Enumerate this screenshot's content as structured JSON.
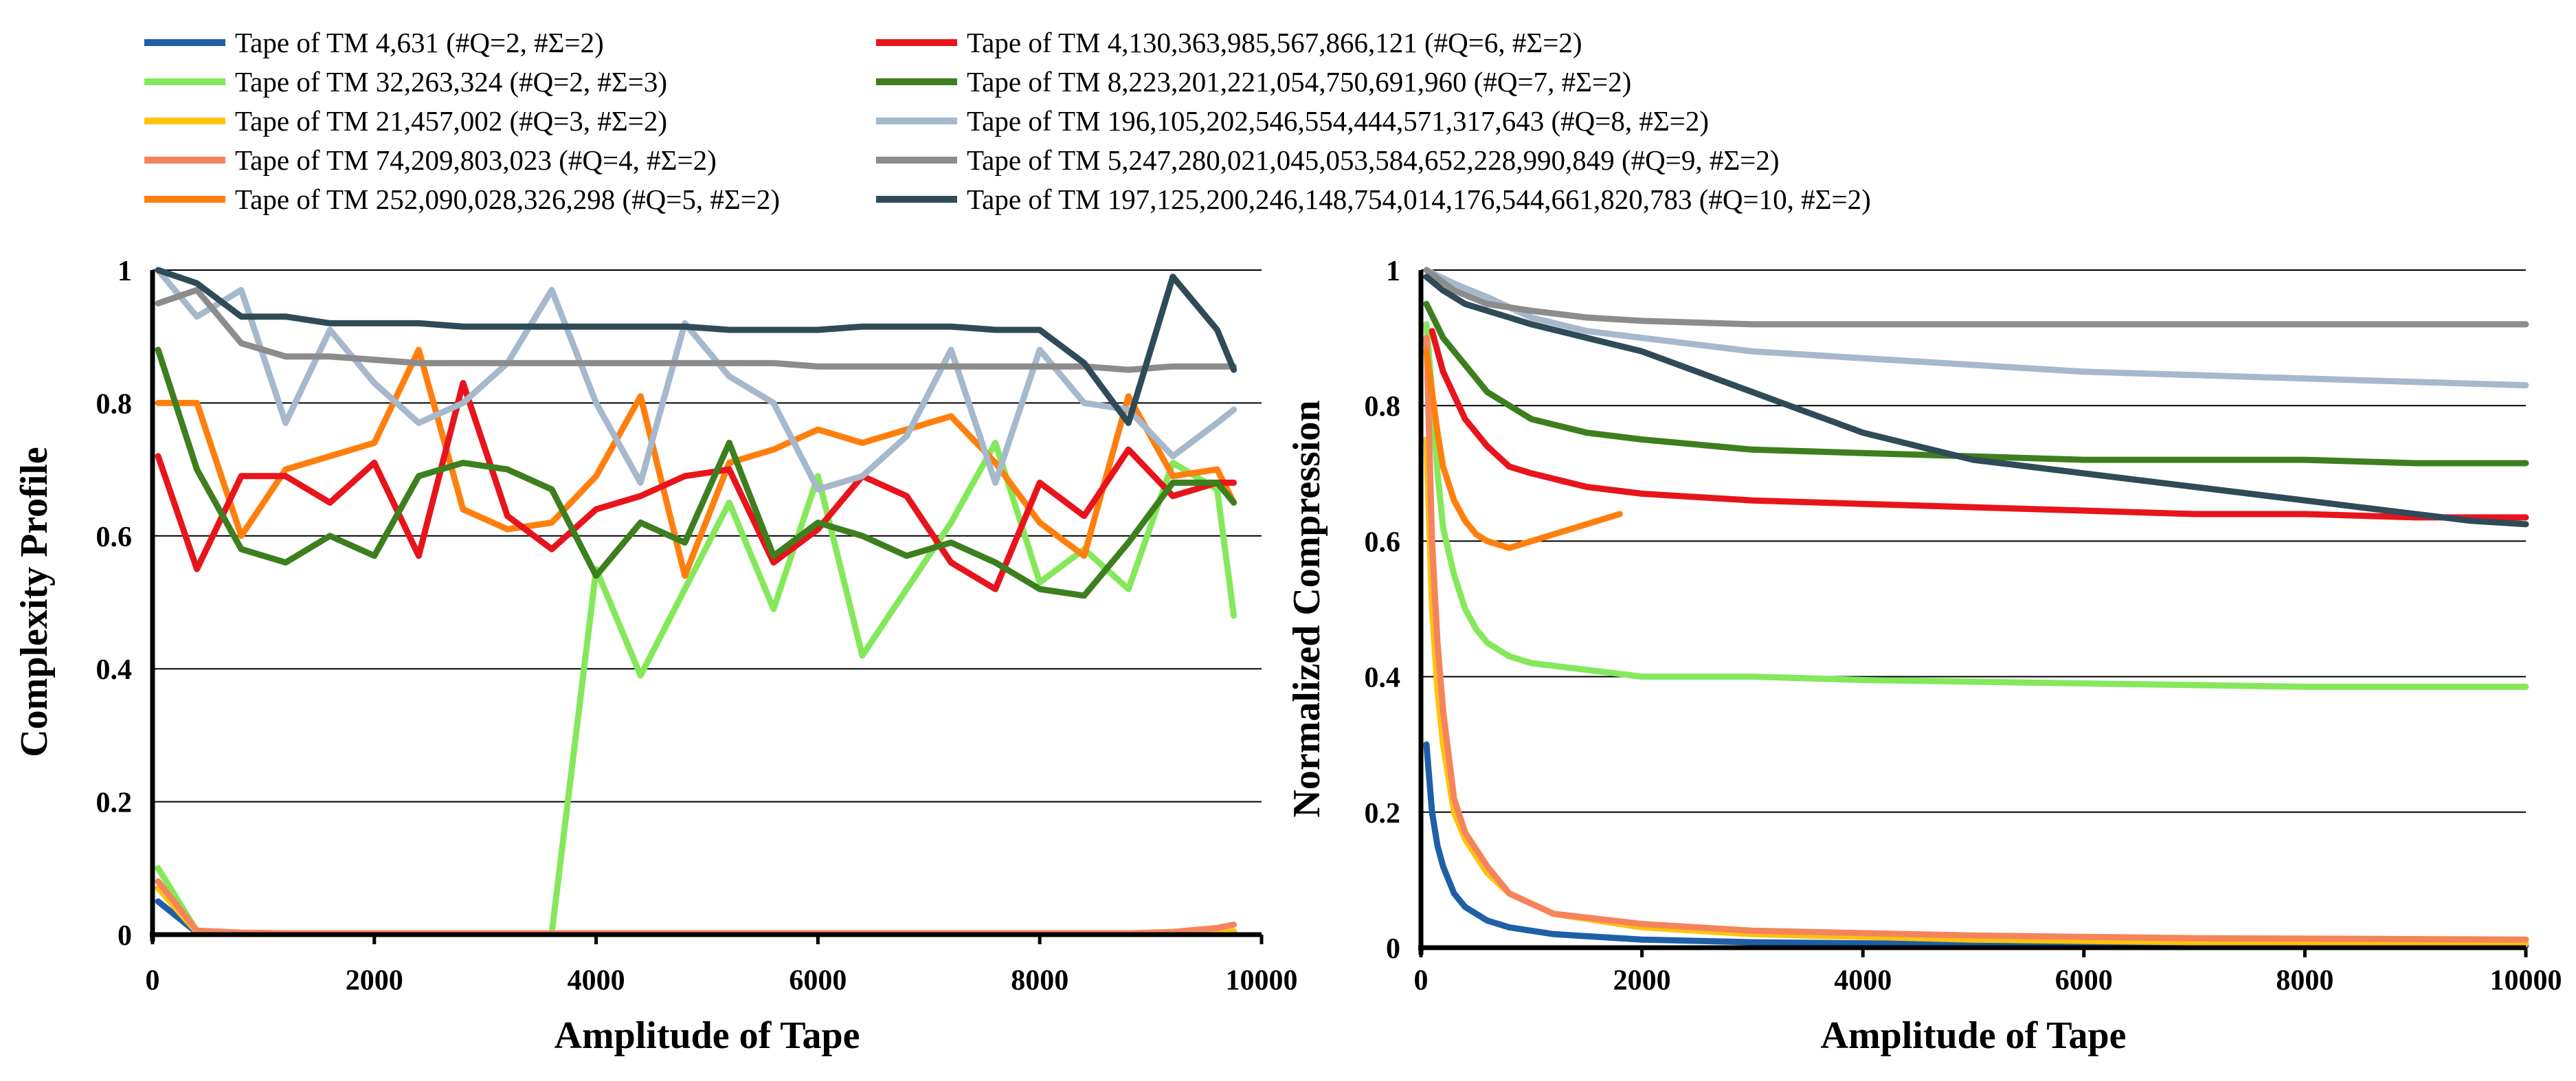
{
  "legend": [
    {
      "label": "Tape of TM 4,631 (#Q=2, #Σ=2)",
      "color": "#1f5fa8"
    },
    {
      "label": "Tape of TM 32,263,324 (#Q=2, #Σ=3)",
      "color": "#84e85a"
    },
    {
      "label": "Tape of TM 21,457,002 (#Q=3, #Σ=2)",
      "color": "#ffc20e"
    },
    {
      "label": "Tape of TM 74,209,803,023 (#Q=4, #Σ=2)",
      "color": "#f5845c"
    },
    {
      "label": "Tape of TM 252,090,028,326,298 (#Q=5, #Σ=2)",
      "color": "#ff7f0e"
    },
    {
      "label": "Tape of TM 4,130,363,985,567,866,121 (#Q=6, #Σ=2)",
      "color": "#e8141c"
    },
    {
      "label": "Tape of TM 8,223,201,221,054,750,691,960 (#Q=7, #Σ=2)",
      "color": "#3d7f1f"
    },
    {
      "label": "Tape of TM 196,105,202,546,554,444,571,317,643 (#Q=8, #Σ=2)",
      "color": "#a6b8cc"
    },
    {
      "label": "Tape of TM 5,247,280,021,045,053,584,652,228,990,849 (#Q=9, #Σ=2)",
      "color": "#8c8c8c"
    },
    {
      "label": "Tape of TM 197,125,200,246,148,754,014,176,544,661,820,783 (#Q=10, #Σ=2)",
      "color": "#2f4b57"
    }
  ],
  "chart_data": [
    {
      "type": "line",
      "xlabel": "Amplitude of Tape",
      "ylabel": "Complexity Profile",
      "xlim": [
        0,
        10000
      ],
      "ylim": [
        0,
        1
      ],
      "xticks": [
        "0",
        "2000",
        "4000",
        "6000",
        "8000",
        "10000"
      ],
      "yticks": [
        "0",
        "0.2",
        "0.4",
        "0.6",
        "0.8",
        "1"
      ],
      "xtick_values": [
        0,
        2000,
        4000,
        6000,
        8000,
        10000
      ],
      "ytick_values": [
        0,
        0.2,
        0.4,
        0.6,
        0.8,
        1
      ],
      "grid": "horizontal",
      "x": [
        50,
        400,
        800,
        1200,
        1600,
        2000,
        2400,
        2800,
        3200,
        3600,
        4000,
        4400,
        4800,
        5200,
        5600,
        6000,
        6400,
        6800,
        7200,
        7600,
        8000,
        8400,
        8800,
        9200,
        9600,
        9750
      ],
      "series": [
        {
          "name": "Tape of TM 4,631 (#Q=2, #Σ=2)",
          "values": [
            0.05,
            0.003,
            0.002,
            0.002,
            0.002,
            0.002,
            0.002,
            0.002,
            0.002,
            0.002,
            0.002,
            0.002,
            0.002,
            0.002,
            0.002,
            0.002,
            0.002,
            0.002,
            0.002,
            0.002,
            0.002,
            0.002,
            0.002,
            0.002,
            0.002,
            0.002
          ]
        },
        {
          "name": "Tape of TM 32,263,324 (#Q=2, #Σ=3)",
          "values": [
            0.1,
            0.005,
            0.002,
            0.002,
            0.002,
            0.002,
            0.002,
            0.002,
            0.002,
            0.002,
            0.55,
            0.39,
            0.52,
            0.65,
            0.49,
            0.69,
            0.42,
            0.52,
            0.62,
            0.74,
            0.53,
            0.58,
            0.52,
            0.71,
            0.67,
            0.48
          ]
        },
        {
          "name": "Tape of TM 21,457,002 (#Q=3, #Σ=2)",
          "values": [
            0.07,
            0.004,
            0.002,
            0.002,
            0.002,
            0.002,
            0.002,
            0.002,
            0.002,
            0.002,
            0.002,
            0.002,
            0.002,
            0.002,
            0.002,
            0.002,
            0.002,
            0.002,
            0.002,
            0.002,
            0.002,
            0.002,
            0.002,
            0.002,
            0.002,
            0.005
          ]
        },
        {
          "name": "Tape of TM 74,209,803,023 (#Q=4, #Σ=2)",
          "values": [
            0.08,
            0.006,
            0.003,
            0.002,
            0.002,
            0.002,
            0.002,
            0.002,
            0.002,
            0.002,
            0.002,
            0.002,
            0.002,
            0.002,
            0.002,
            0.002,
            0.002,
            0.002,
            0.002,
            0.002,
            0.002,
            0.002,
            0.002,
            0.004,
            0.01,
            0.015
          ]
        },
        {
          "name": "Tape of TM 252,090,028,326,298 (#Q=5, #Σ=2)",
          "values": [
            0.8,
            0.8,
            0.6,
            0.7,
            0.72,
            0.74,
            0.88,
            0.64,
            0.61,
            0.62,
            0.69,
            0.81,
            0.54,
            0.71,
            0.73,
            0.76,
            0.74,
            0.76,
            0.78,
            0.71,
            0.62,
            0.57,
            0.81,
            0.69,
            0.7,
            0.65
          ]
        },
        {
          "name": "Tape of TM 4,130,363,985,567,866,121 (#Q=6, #Σ=2)",
          "values": [
            0.72,
            0.55,
            0.69,
            0.69,
            0.65,
            0.71,
            0.57,
            0.83,
            0.63,
            0.58,
            0.64,
            0.66,
            0.69,
            0.7,
            0.56,
            0.61,
            0.69,
            0.66,
            0.56,
            0.52,
            0.68,
            0.63,
            0.73,
            0.66,
            0.68,
            0.68
          ]
        },
        {
          "name": "Tape of TM 8,223,201,221,054,750,691,960 (#Q=7, #Σ=2)",
          "values": [
            0.88,
            0.7,
            0.58,
            0.56,
            0.6,
            0.57,
            0.69,
            0.71,
            0.7,
            0.67,
            0.54,
            0.62,
            0.59,
            0.74,
            0.57,
            0.62,
            0.6,
            0.57,
            0.59,
            0.56,
            0.52,
            0.51,
            0.59,
            0.68,
            0.68,
            0.65
          ]
        },
        {
          "name": "Tape of TM 196,105,202,546,554,444,571,317,643 (#Q=8, #Σ=2)",
          "values": [
            1.0,
            0.93,
            0.97,
            0.77,
            0.91,
            0.83,
            0.77,
            0.8,
            0.86,
            0.97,
            0.8,
            0.68,
            0.92,
            0.84,
            0.8,
            0.67,
            0.69,
            0.75,
            0.88,
            0.68,
            0.88,
            0.8,
            0.79,
            0.72,
            0.77,
            0.79
          ]
        },
        {
          "name": "Tape of TM 5,247,280,021,045,053,584,652,228,990,849 (#Q=9, #Σ=2)",
          "values": [
            0.95,
            0.97,
            0.89,
            0.87,
            0.87,
            0.865,
            0.86,
            0.86,
            0.86,
            0.86,
            0.86,
            0.86,
            0.86,
            0.86,
            0.86,
            0.855,
            0.855,
            0.855,
            0.855,
            0.855,
            0.855,
            0.855,
            0.85,
            0.855,
            0.855,
            0.855
          ]
        },
        {
          "name": "Tape of TM 197,125,200,246,148,754,014,176,544,661,820,783 (#Q=10, #Σ=2)",
          "values": [
            1.0,
            0.98,
            0.93,
            0.93,
            0.92,
            0.92,
            0.92,
            0.915,
            0.915,
            0.915,
            0.915,
            0.915,
            0.915,
            0.91,
            0.91,
            0.91,
            0.915,
            0.915,
            0.915,
            0.91,
            0.91,
            0.86,
            0.77,
            0.99,
            0.91,
            0.85
          ]
        }
      ]
    },
    {
      "type": "line",
      "xlabel": "Amplitude of Tape",
      "ylabel": "Normalized Compression",
      "xlim": [
        0,
        10000
      ],
      "ylim": [
        0,
        1
      ],
      "xticks": [
        "0",
        "2000",
        "4000",
        "6000",
        "8000",
        "10000"
      ],
      "yticks": [
        "0",
        "0.2",
        "0.4",
        "0.6",
        "0.8",
        "1"
      ],
      "xtick_values": [
        0,
        2000,
        4000,
        6000,
        8000,
        10000
      ],
      "ytick_values": [
        0,
        0.2,
        0.4,
        0.6,
        0.8,
        1
      ],
      "grid": "horizontal",
      "series": [
        {
          "name": "Tape of TM 4,631 (#Q=2, #Σ=2)",
          "x": [
            50,
            100,
            150,
            200,
            300,
            400,
            600,
            800,
            1200,
            2000,
            3000,
            5000,
            7000,
            10000
          ],
          "values": [
            0.3,
            0.2,
            0.15,
            0.12,
            0.08,
            0.06,
            0.04,
            0.03,
            0.02,
            0.012,
            0.008,
            0.005,
            0.004,
            0.003
          ]
        },
        {
          "name": "Tape of TM 32,263,324 (#Q=2, #Σ=3)",
          "x": [
            50,
            100,
            150,
            200,
            300,
            400,
            500,
            600,
            800,
            1000,
            1500,
            2000,
            3000,
            4000,
            6000,
            8000,
            10000
          ],
          "values": [
            0.92,
            0.82,
            0.7,
            0.62,
            0.55,
            0.5,
            0.47,
            0.45,
            0.43,
            0.42,
            0.41,
            0.4,
            0.4,
            0.395,
            0.39,
            0.385,
            0.385
          ]
        },
        {
          "name": "Tape of TM 21,457,002 (#Q=3, #Σ=2)",
          "x": [
            50,
            100,
            150,
            200,
            300,
            400,
            600,
            800,
            1200,
            2000,
            3000,
            5000,
            7000,
            10000
          ],
          "values": [
            0.75,
            0.5,
            0.38,
            0.3,
            0.2,
            0.16,
            0.11,
            0.08,
            0.05,
            0.03,
            0.02,
            0.012,
            0.008,
            0.006
          ]
        },
        {
          "name": "Tape of TM 74,209,803,023 (#Q=4, #Σ=2)",
          "x": [
            50,
            100,
            150,
            200,
            300,
            400,
            600,
            800,
            1200,
            2000,
            3000,
            5000,
            7000,
            10000
          ],
          "values": [
            0.9,
            0.6,
            0.45,
            0.35,
            0.22,
            0.17,
            0.12,
            0.08,
            0.05,
            0.035,
            0.025,
            0.018,
            0.014,
            0.012
          ]
        },
        {
          "name": "Tape of TM 252,090,028,326,298 (#Q=5, #Σ=2)",
          "x": [
            50,
            100,
            150,
            200,
            300,
            400,
            500,
            600,
            800,
            1000,
            1200,
            1400,
            1600,
            1800
          ],
          "values": [
            0.88,
            0.82,
            0.76,
            0.71,
            0.66,
            0.63,
            0.61,
            0.6,
            0.59,
            0.6,
            0.61,
            0.62,
            0.63,
            0.64
          ]
        },
        {
          "name": "Tape of TM 4,130,363,985,567,866,121 (#Q=6, #Σ=2)",
          "x": [
            100,
            200,
            400,
            600,
            800,
            1000,
            1500,
            2000,
            3000,
            4000,
            5000,
            6000,
            7000,
            8000,
            9000,
            10000
          ],
          "values": [
            0.91,
            0.85,
            0.78,
            0.74,
            0.71,
            0.7,
            0.68,
            0.67,
            0.66,
            0.655,
            0.65,
            0.645,
            0.64,
            0.64,
            0.635,
            0.635
          ]
        },
        {
          "name": "Tape of TM 8,223,201,221,054,750,691,960 (#Q=7, #Σ=2)",
          "x": [
            50,
            200,
            400,
            600,
            800,
            1000,
            1500,
            2000,
            3000,
            4000,
            5000,
            6000,
            7000,
            8000,
            9000,
            10000
          ],
          "values": [
            0.95,
            0.9,
            0.86,
            0.82,
            0.8,
            0.78,
            0.76,
            0.75,
            0.735,
            0.73,
            0.725,
            0.72,
            0.72,
            0.72,
            0.715,
            0.715
          ]
        },
        {
          "name": "Tape of TM 196,105,202,546,554,444,571,317,643 (#Q=8, #Σ=2)",
          "x": [
            50,
            300,
            600,
            1000,
            1500,
            2000,
            2500,
            3000,
            3500,
            4000,
            5000,
            6000,
            7000,
            8000,
            9000,
            10000
          ],
          "values": [
            1.0,
            0.98,
            0.96,
            0.93,
            0.91,
            0.9,
            0.89,
            0.88,
            0.875,
            0.87,
            0.86,
            0.85,
            0.845,
            0.84,
            0.835,
            0.83
          ]
        },
        {
          "name": "Tape of TM 5,247,280,021,045,053,584,652,228,990,849 (#Q=9, #Σ=2)",
          "x": [
            50,
            300,
            600,
            1000,
            1500,
            2000,
            3000,
            4000,
            6000,
            8000,
            10000
          ],
          "values": [
            1.0,
            0.97,
            0.95,
            0.94,
            0.93,
            0.925,
            0.92,
            0.92,
            0.92,
            0.92,
            0.92
          ]
        },
        {
          "name": "Tape of TM 197,125,200,246,148,754,014,176,544,661,820,783 (#Q=10, #Σ=2)",
          "x": [
            50,
            200,
            400,
            600,
            800,
            1000,
            1500,
            2000,
            2500,
            3000,
            3500,
            4000,
            4500,
            5000,
            5500,
            6000,
            6500,
            7000,
            7500,
            8000,
            8500,
            9000,
            9500,
            10000
          ],
          "values": [
            0.99,
            0.97,
            0.95,
            0.94,
            0.93,
            0.92,
            0.9,
            0.88,
            0.85,
            0.82,
            0.79,
            0.76,
            0.74,
            0.72,
            0.71,
            0.7,
            0.69,
            0.68,
            0.67,
            0.66,
            0.65,
            0.64,
            0.63,
            0.625
          ]
        }
      ]
    }
  ]
}
